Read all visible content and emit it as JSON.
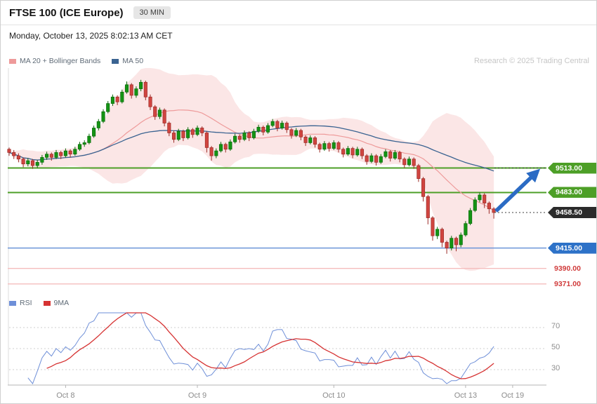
{
  "header": {
    "title": "FTSE 100 (ICE Europe)",
    "timeframe": "30 MIN",
    "datetime": "Monday, October 13, 2025 8:02:13 AM CET"
  },
  "copyright": "Research © 2025 Trading Central",
  "legend_main": [
    {
      "label": "MA 20 + Bollinger Bands",
      "color": "#ee9a9a"
    },
    {
      "label": "MA 50",
      "color": "#3a6391"
    }
  ],
  "legend_rsi": [
    {
      "label": "RSI",
      "color": "#6e8fd8"
    },
    {
      "label": "9MA",
      "color": "#d63333"
    }
  ],
  "chart_data": {
    "type": "candlestick",
    "instrument": "FTSE 100 (ICE Europe)",
    "interval": "30 MIN",
    "y_range": [
      9364,
      9632
    ],
    "x_ticks": [
      {
        "label": "Oct 8",
        "i": 12
      },
      {
        "label": "Oct 9",
        "i": 40
      },
      {
        "label": "Oct 10",
        "i": 69
      },
      {
        "label": "Oct 13",
        "i": 97
      },
      {
        "label": "Oct 19",
        "i": 107
      }
    ],
    "indicators": {
      "ma20_bollinger": {
        "period": 20,
        "stddev": 2,
        "line_color": "#ee9a9a",
        "band_fill": "#f8d6d6"
      },
      "ma50": {
        "period": 50,
        "line_color": "#3a6391"
      },
      "rsi": {
        "period": 14,
        "line_color": "#6e8fd8"
      },
      "rsi_ma": {
        "period": 9,
        "line_color": "#d63333"
      }
    },
    "rsi_levels": [
      70,
      50,
      30
    ],
    "levels": [
      {
        "label": "9513.00",
        "value": 9513,
        "kind": "resistance",
        "line_color": "#4d9f27",
        "tag_bg": "#4d9f27",
        "tag_color": "#ffffff",
        "projection": true
      },
      {
        "label": "9483.00",
        "value": 9483,
        "kind": "resistance",
        "line_color": "#4d9f27",
        "tag_bg": "#4d9f27",
        "tag_color": "#ffffff",
        "projection": false
      },
      {
        "label": "9458.50",
        "value": 9458.5,
        "kind": "last-price",
        "line_color": null,
        "tag_bg": "#2b2b2b",
        "tag_color": "#ffffff",
        "projection": true
      },
      {
        "label": "9415.00",
        "value": 9415,
        "kind": "support",
        "line_color": "#6b95d8",
        "tag_bg": "#2d72c8",
        "tag_color": "#ffffff",
        "projection": false
      },
      {
        "label": "9390.00",
        "value": 9390,
        "kind": "support",
        "line_color": "#f5bdbd",
        "tag_bg": null,
        "tag_color": "#d03a3a",
        "projection": false
      },
      {
        "label": "9371.00",
        "value": 9371,
        "kind": "support",
        "line_color": "#f5bdbd",
        "tag_bg": null,
        "tag_color": "#d03a3a",
        "projection": false
      }
    ],
    "arrow": {
      "from_value": 9458.5,
      "to_value": 9513,
      "color": "#2b6bc4"
    },
    "candles": [
      [
        9536,
        9538,
        9528,
        9532
      ],
      [
        9532,
        9535,
        9524,
        9528
      ],
      [
        9528,
        9531,
        9520,
        9524
      ],
      [
        9524,
        9526,
        9514,
        9518
      ],
      [
        9518,
        9525,
        9515,
        9522
      ],
      [
        9522,
        9524,
        9512,
        9516
      ],
      [
        9516,
        9523,
        9513,
        9520
      ],
      [
        9520,
        9529,
        9517,
        9526
      ],
      [
        9526,
        9533,
        9523,
        9530
      ],
      [
        9530,
        9532,
        9522,
        9526
      ],
      [
        9526,
        9535,
        9524,
        9532
      ],
      [
        9532,
        9534,
        9524,
        9528
      ],
      [
        9528,
        9537,
        9526,
        9534
      ],
      [
        9534,
        9536,
        9526,
        9530
      ],
      [
        9530,
        9539,
        9528,
        9536
      ],
      [
        9536,
        9545,
        9534,
        9542
      ],
      [
        9542,
        9547,
        9539,
        9544
      ],
      [
        9544,
        9555,
        9542,
        9552
      ],
      [
        9552,
        9565,
        9550,
        9562
      ],
      [
        9562,
        9573,
        9559,
        9570
      ],
      [
        9570,
        9585,
        9568,
        9582
      ],
      [
        9582,
        9595,
        9580,
        9592
      ],
      [
        9592,
        9603,
        9589,
        9600
      ],
      [
        9600,
        9602,
        9590,
        9594
      ],
      [
        9594,
        9609,
        9592,
        9606
      ],
      [
        9606,
        9619,
        9604,
        9615
      ],
      [
        9615,
        9617,
        9598,
        9602
      ],
      [
        9602,
        9613,
        9599,
        9610
      ],
      [
        9610,
        9621,
        9607,
        9618
      ],
      [
        9618,
        9620,
        9596,
        9600
      ],
      [
        9600,
        9603,
        9584,
        9588
      ],
      [
        9588,
        9590,
        9572,
        9576
      ],
      [
        9576,
        9587,
        9573,
        9584
      ],
      [
        9584,
        9586,
        9564,
        9568
      ],
      [
        9568,
        9570,
        9552,
        9556
      ],
      [
        9556,
        9559,
        9544,
        9548
      ],
      [
        9548,
        9561,
        9546,
        9558
      ],
      [
        9558,
        9560,
        9546,
        9550
      ],
      [
        9550,
        9563,
        9548,
        9560
      ],
      [
        9560,
        9562,
        9550,
        9554
      ],
      [
        9554,
        9565,
        9552,
        9562
      ],
      [
        9562,
        9564,
        9552,
        9556
      ],
      [
        9556,
        9558,
        9532,
        9538
      ],
      [
        9538,
        9540,
        9522,
        9528
      ],
      [
        9528,
        9537,
        9525,
        9534
      ],
      [
        9534,
        9545,
        9532,
        9542
      ],
      [
        9542,
        9544,
        9532,
        9536
      ],
      [
        9536,
        9548,
        9534,
        9545
      ],
      [
        9545,
        9555,
        9543,
        9552
      ],
      [
        9552,
        9554,
        9544,
        9548
      ],
      [
        9548,
        9559,
        9546,
        9556
      ],
      [
        9556,
        9558,
        9546,
        9550
      ],
      [
        9550,
        9561,
        9548,
        9558
      ],
      [
        9558,
        9566,
        9556,
        9563
      ],
      [
        9563,
        9565,
        9553,
        9557
      ],
      [
        9557,
        9568,
        9555,
        9565
      ],
      [
        9565,
        9573,
        9563,
        9570
      ],
      [
        9570,
        9572,
        9558,
        9562
      ],
      [
        9562,
        9571,
        9560,
        9568
      ],
      [
        9568,
        9570,
        9556,
        9560
      ],
      [
        9560,
        9562,
        9549,
        9553
      ],
      [
        9553,
        9562,
        9551,
        9559
      ],
      [
        9559,
        9561,
        9547,
        9551
      ],
      [
        9551,
        9553,
        9540,
        9544
      ],
      [
        9544,
        9553,
        9542,
        9550
      ],
      [
        9550,
        9552,
        9538,
        9542
      ],
      [
        9542,
        9544,
        9532,
        9536
      ],
      [
        9536,
        9546,
        9534,
        9543
      ],
      [
        9543,
        9545,
        9533,
        9537
      ],
      [
        9537,
        9547,
        9535,
        9544
      ],
      [
        9544,
        9546,
        9532,
        9536
      ],
      [
        9536,
        9538,
        9526,
        9530
      ],
      [
        9530,
        9540,
        9528,
        9537
      ],
      [
        9537,
        9539,
        9525,
        9529
      ],
      [
        9529,
        9539,
        9527,
        9536
      ],
      [
        9536,
        9538,
        9524,
        9528
      ],
      [
        9528,
        9530,
        9517,
        9521
      ],
      [
        9521,
        9531,
        9519,
        9528
      ],
      [
        9528,
        9530,
        9516,
        9520
      ],
      [
        9520,
        9530,
        9518,
        9527
      ],
      [
        9527,
        9536,
        9525,
        9533
      ],
      [
        9533,
        9535,
        9521,
        9525
      ],
      [
        9525,
        9535,
        9523,
        9532
      ],
      [
        9532,
        9534,
        9520,
        9524
      ],
      [
        9524,
        9526,
        9513,
        9517
      ],
      [
        9517,
        9527,
        9515,
        9524
      ],
      [
        9524,
        9526,
        9512,
        9516
      ],
      [
        9516,
        9518,
        9496,
        9500
      ],
      [
        9500,
        9502,
        9472,
        9478
      ],
      [
        9478,
        9480,
        9444,
        9452
      ],
      [
        9452,
        9454,
        9424,
        9430
      ],
      [
        9430,
        9441,
        9426,
        9438
      ],
      [
        9438,
        9440,
        9416,
        9422
      ],
      [
        9422,
        9424,
        9408,
        9415
      ],
      [
        9415,
        9430,
        9412,
        9427
      ],
      [
        9427,
        9429,
        9411,
        9419
      ],
      [
        9419,
        9434,
        9416,
        9431
      ],
      [
        9431,
        9448,
        9429,
        9445
      ],
      [
        9445,
        9464,
        9443,
        9461
      ],
      [
        9461,
        9477,
        9459,
        9474
      ],
      [
        9474,
        9483,
        9471,
        9480
      ],
      [
        9480,
        9482,
        9464,
        9470
      ],
      [
        9470,
        9472,
        9457,
        9463
      ],
      [
        9463,
        9465,
        9451,
        9458.5
      ]
    ]
  }
}
